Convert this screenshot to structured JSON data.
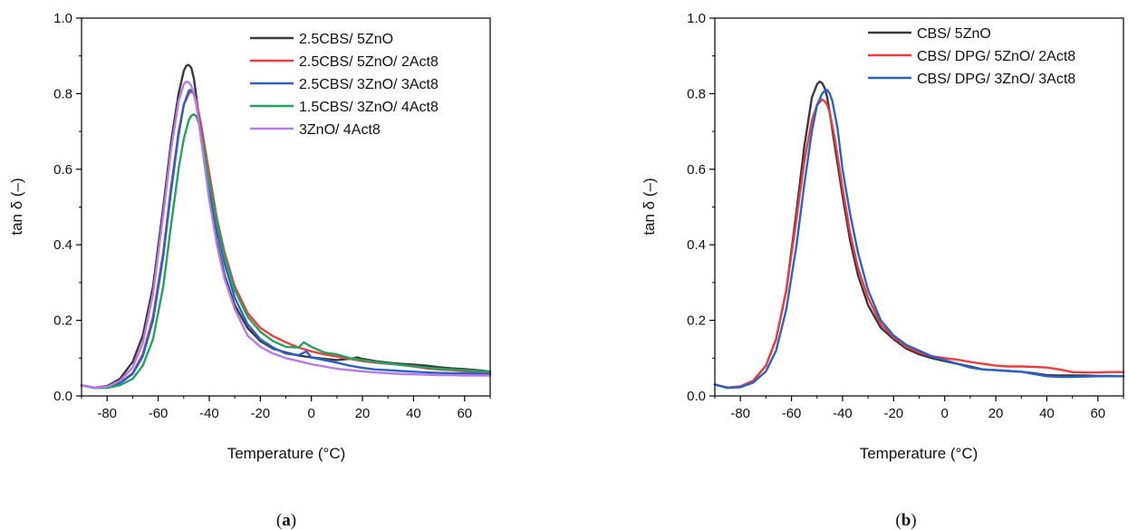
{
  "colors": {
    "black": "#3a3a3a",
    "red": "#ee3b3b",
    "blue": "#2a62c8",
    "green": "#22a35f",
    "purple": "#b87ae6"
  },
  "chart_data": [
    {
      "type": "line",
      "panel_label": "a",
      "xlabel": "Temperature (°C)",
      "ylabel": "tan δ (–)",
      "xlim": [
        -90,
        70
      ],
      "ylim": [
        0.0,
        1.0
      ],
      "xticks": [
        -80,
        -60,
        -40,
        -20,
        0,
        20,
        40,
        60
      ],
      "yticks": [
        0.0,
        0.2,
        0.4,
        0.6,
        0.8,
        1.0
      ],
      "ytick_labels": [
        "0.0",
        "0.2",
        "0.4",
        "0.6",
        "0.8",
        "1.0"
      ],
      "legend_position": "top-right",
      "grid": false,
      "series": [
        {
          "name": "2.5CBS/ 5ZnO",
          "color_key": "black",
          "x": [
            -90,
            -85,
            -80,
            -75,
            -70,
            -66,
            -62,
            -58,
            -55,
            -52,
            -50,
            -49,
            -48,
            -47,
            -46,
            -45,
            -43,
            -40,
            -37,
            -34,
            -30,
            -25,
            -20,
            -15,
            -10,
            -5,
            0,
            5,
            10,
            15,
            18,
            20,
            25,
            30,
            35,
            40,
            45,
            50,
            55,
            60,
            65,
            70
          ],
          "y": [
            0.028,
            0.022,
            0.026,
            0.045,
            0.09,
            0.16,
            0.29,
            0.5,
            0.67,
            0.8,
            0.86,
            0.874,
            0.876,
            0.868,
            0.84,
            0.79,
            0.68,
            0.53,
            0.41,
            0.32,
            0.24,
            0.18,
            0.145,
            0.125,
            0.115,
            0.107,
            0.102,
            0.098,
            0.095,
            0.098,
            0.102,
            0.098,
            0.092,
            0.088,
            0.085,
            0.083,
            0.08,
            0.076,
            0.073,
            0.071,
            0.068,
            0.065
          ]
        },
        {
          "name": "2.5CBS/ 5ZnO/ 2Act8",
          "color_key": "red",
          "x": [
            -90,
            -85,
            -80,
            -75,
            -70,
            -66,
            -62,
            -58,
            -55,
            -52,
            -50,
            -48,
            -47,
            -46,
            -45,
            -43,
            -40,
            -37,
            -34,
            -30,
            -25,
            -20,
            -15,
            -10,
            -5,
            0,
            5,
            10,
            15,
            20,
            25,
            30,
            35,
            40,
            45,
            50,
            55,
            60,
            65,
            70
          ],
          "y": [
            0.028,
            0.022,
            0.024,
            0.035,
            0.06,
            0.11,
            0.21,
            0.38,
            0.55,
            0.7,
            0.77,
            0.8,
            0.806,
            0.8,
            0.78,
            0.71,
            0.59,
            0.47,
            0.38,
            0.29,
            0.22,
            0.18,
            0.158,
            0.142,
            0.128,
            0.118,
            0.11,
            0.104,
            0.098,
            0.092,
            0.088,
            0.085,
            0.082,
            0.078,
            0.073,
            0.07,
            0.068,
            0.066,
            0.064,
            0.062
          ]
        },
        {
          "name": "2.5CBS/ 3ZnO/ 3Act8",
          "color_key": "blue",
          "x": [
            -90,
            -85,
            -80,
            -75,
            -70,
            -66,
            -62,
            -58,
            -55,
            -52,
            -50,
            -48,
            -47,
            -46,
            -45,
            -43,
            -40,
            -37,
            -34,
            -30,
            -25,
            -20,
            -15,
            -10,
            -5,
            -2,
            0,
            5,
            10,
            15,
            20,
            25,
            30,
            35,
            40,
            45,
            50,
            55,
            60,
            65,
            70
          ],
          "y": [
            0.028,
            0.021,
            0.023,
            0.033,
            0.058,
            0.105,
            0.2,
            0.37,
            0.54,
            0.69,
            0.77,
            0.808,
            0.81,
            0.8,
            0.77,
            0.69,
            0.56,
            0.44,
            0.35,
            0.26,
            0.19,
            0.15,
            0.128,
            0.112,
            0.108,
            0.118,
            0.102,
            0.095,
            0.088,
            0.08,
            0.074,
            0.07,
            0.068,
            0.066,
            0.064,
            0.062,
            0.061,
            0.06,
            0.06,
            0.059,
            0.058
          ]
        },
        {
          "name": "1.5CBS/ 3ZnO/ 4Act8",
          "color_key": "green",
          "x": [
            -90,
            -85,
            -80,
            -75,
            -70,
            -66,
            -62,
            -58,
            -55,
            -52,
            -50,
            -48,
            -47,
            -46,
            -45,
            -44,
            -42,
            -40,
            -37,
            -34,
            -30,
            -25,
            -20,
            -15,
            -10,
            -5,
            -3,
            0,
            5,
            10,
            15,
            20,
            25,
            30,
            35,
            40,
            45,
            50,
            55,
            60,
            65,
            70
          ],
          "y": [
            0.028,
            0.021,
            0.021,
            0.028,
            0.045,
            0.08,
            0.15,
            0.29,
            0.45,
            0.6,
            0.68,
            0.73,
            0.742,
            0.745,
            0.74,
            0.72,
            0.65,
            0.57,
            0.46,
            0.37,
            0.28,
            0.21,
            0.17,
            0.145,
            0.13,
            0.128,
            0.142,
            0.13,
            0.115,
            0.11,
            0.1,
            0.095,
            0.09,
            0.086,
            0.082,
            0.079,
            0.075,
            0.072,
            0.07,
            0.068,
            0.066,
            0.065
          ]
        },
        {
          "name": "3ZnO/ 4Act8",
          "color_key": "purple",
          "x": [
            -90,
            -85,
            -80,
            -75,
            -70,
            -66,
            -62,
            -58,
            -55,
            -52,
            -50,
            -49,
            -48,
            -47,
            -46,
            -45,
            -43,
            -40,
            -37,
            -34,
            -30,
            -25,
            -20,
            -15,
            -10,
            -5,
            0,
            5,
            10,
            15,
            20,
            25,
            30,
            35,
            40,
            45,
            50,
            55,
            60,
            65,
            70
          ],
          "y": [
            0.028,
            0.022,
            0.024,
            0.04,
            0.075,
            0.14,
            0.27,
            0.48,
            0.65,
            0.78,
            0.825,
            0.832,
            0.83,
            0.82,
            0.8,
            0.77,
            0.67,
            0.52,
            0.4,
            0.31,
            0.23,
            0.16,
            0.13,
            0.112,
            0.1,
            0.092,
            0.084,
            0.078,
            0.072,
            0.068,
            0.065,
            0.062,
            0.06,
            0.058,
            0.057,
            0.056,
            0.055,
            0.055,
            0.054,
            0.054,
            0.054
          ]
        }
      ]
    },
    {
      "type": "line",
      "panel_label": "b",
      "xlabel": "Temperature (°C)",
      "ylabel": "tan δ (–)",
      "xlim": [
        -90,
        70
      ],
      "ylim": [
        0.0,
        1.0
      ],
      "xticks": [
        -80,
        -60,
        -40,
        -20,
        0,
        20,
        40,
        60
      ],
      "yticks": [
        0.0,
        0.2,
        0.4,
        0.6,
        0.8,
        1.0
      ],
      "ytick_labels": [
        "0.0",
        "0.2",
        "0.4",
        "0.6",
        "0.8",
        "1.0"
      ],
      "legend_position": "top-right",
      "grid": false,
      "series": [
        {
          "name": "CBS/ 5ZnO",
          "color_key": "black",
          "x": [
            -90,
            -85,
            -80,
            -75,
            -70,
            -66,
            -62,
            -58,
            -55,
            -52,
            -50,
            -49,
            -48,
            -47,
            -46,
            -45,
            -43,
            -40,
            -37,
            -34,
            -30,
            -25,
            -20,
            -15,
            -10,
            -5,
            0,
            5,
            10,
            15,
            20,
            25,
            30,
            35,
            40,
            45,
            50,
            55,
            60,
            65,
            70
          ],
          "y": [
            0.03,
            0.022,
            0.025,
            0.04,
            0.08,
            0.15,
            0.28,
            0.49,
            0.66,
            0.79,
            0.825,
            0.832,
            0.828,
            0.815,
            0.79,
            0.75,
            0.66,
            0.53,
            0.41,
            0.32,
            0.24,
            0.18,
            0.15,
            0.125,
            0.11,
            0.1,
            0.092,
            0.085,
            0.078,
            0.07,
            0.068,
            0.066,
            0.064,
            0.06,
            0.055,
            0.054,
            0.054,
            0.054,
            0.053,
            0.053,
            0.052
          ]
        },
        {
          "name": "CBS/ DPG/ 5ZnO/ 2Act8",
          "color_key": "red",
          "x": [
            -90,
            -85,
            -80,
            -75,
            -70,
            -66,
            -62,
            -58,
            -55,
            -52,
            -50,
            -48,
            -47,
            -46,
            -45,
            -43,
            -40,
            -37,
            -34,
            -30,
            -25,
            -20,
            -15,
            -10,
            -5,
            0,
            5,
            10,
            15,
            20,
            25,
            30,
            35,
            40,
            45,
            50,
            55,
            60,
            65,
            70
          ],
          "y": [
            0.03,
            0.022,
            0.025,
            0.04,
            0.08,
            0.15,
            0.28,
            0.47,
            0.62,
            0.73,
            0.77,
            0.785,
            0.78,
            0.77,
            0.75,
            0.68,
            0.55,
            0.43,
            0.34,
            0.26,
            0.19,
            0.155,
            0.13,
            0.115,
            0.105,
            0.1,
            0.096,
            0.09,
            0.085,
            0.08,
            0.078,
            0.078,
            0.077,
            0.075,
            0.07,
            0.063,
            0.062,
            0.062,
            0.063,
            0.063
          ]
        },
        {
          "name": "CBS/ DPG/ 3ZnO/ 3Act8",
          "color_key": "blue",
          "x": [
            -90,
            -85,
            -80,
            -75,
            -70,
            -66,
            -62,
            -58,
            -55,
            -52,
            -50,
            -48,
            -47,
            -46,
            -45,
            -44,
            -42,
            -40,
            -37,
            -34,
            -30,
            -25,
            -20,
            -15,
            -10,
            -5,
            0,
            5,
            10,
            15,
            20,
            25,
            30,
            35,
            40,
            45,
            50,
            55,
            60,
            65,
            70
          ],
          "y": [
            0.03,
            0.021,
            0.023,
            0.035,
            0.065,
            0.12,
            0.23,
            0.4,
            0.56,
            0.7,
            0.77,
            0.8,
            0.808,
            0.81,
            0.8,
            0.78,
            0.71,
            0.6,
            0.48,
            0.38,
            0.28,
            0.2,
            0.16,
            0.135,
            0.12,
            0.105,
            0.095,
            0.085,
            0.075,
            0.07,
            0.068,
            0.066,
            0.064,
            0.058,
            0.052,
            0.05,
            0.05,
            0.051,
            0.052,
            0.052,
            0.052
          ]
        }
      ]
    }
  ]
}
